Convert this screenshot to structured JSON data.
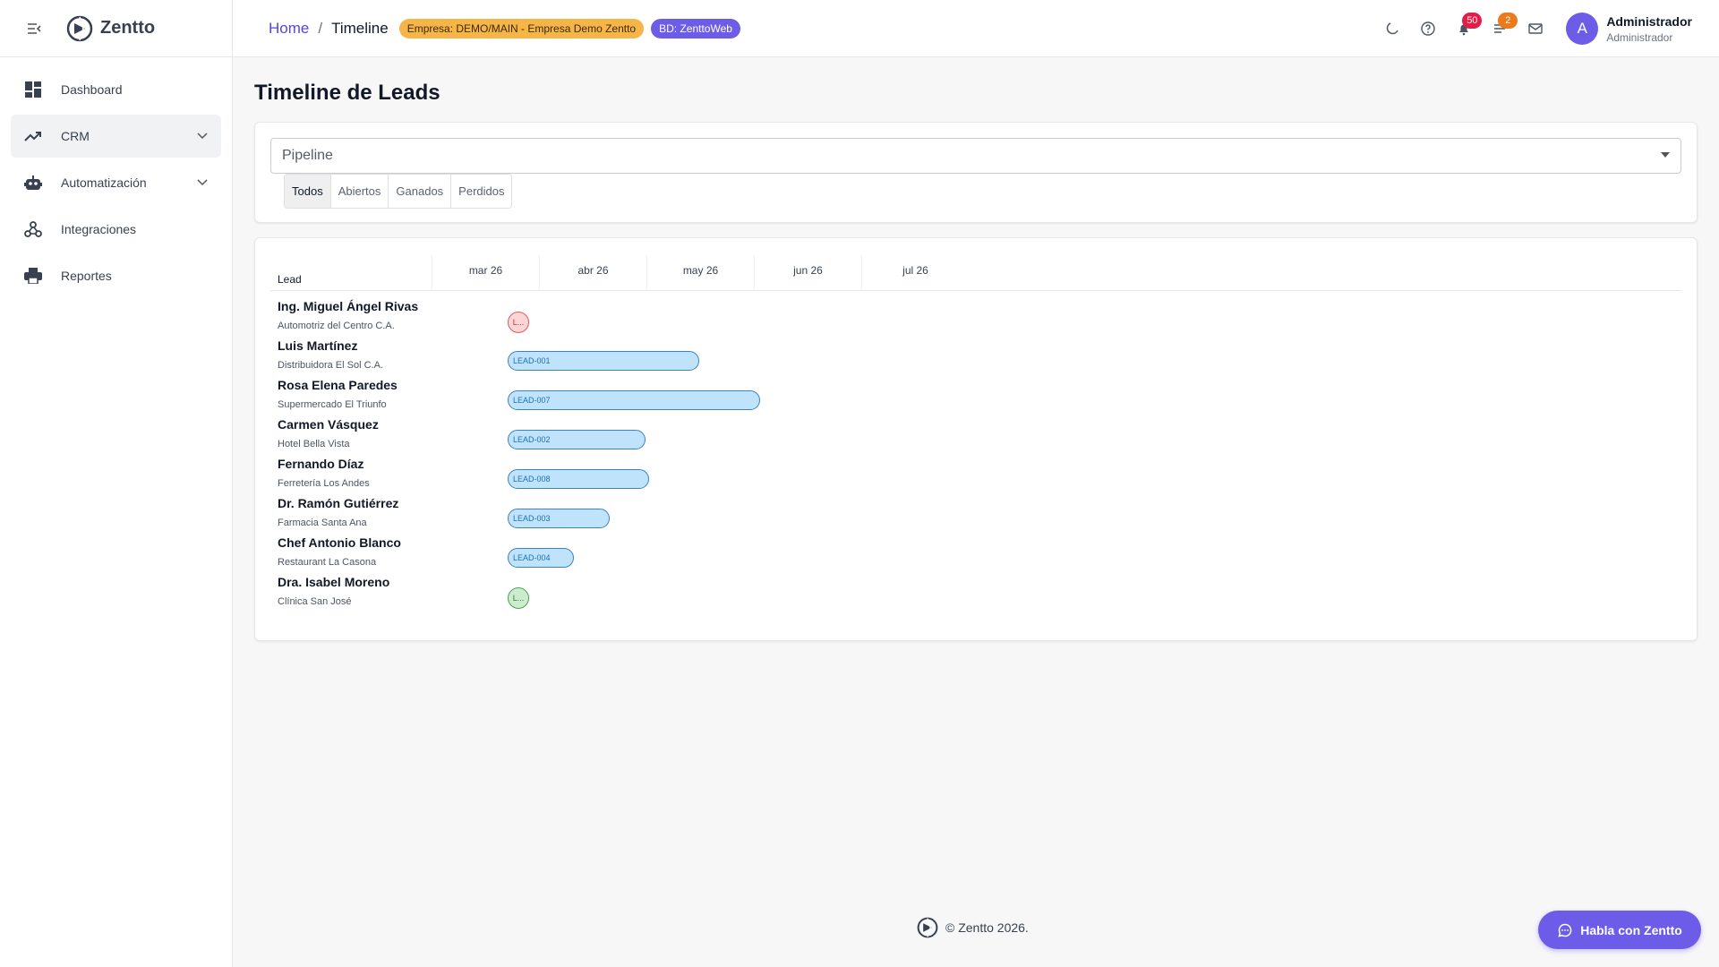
{
  "app": {
    "name": "Zentto"
  },
  "sidebar": {
    "items": [
      {
        "label": "Dashboard",
        "icon": "dashboard-icon"
      },
      {
        "label": "CRM",
        "icon": "trending-up-icon",
        "expandable": true,
        "active": true
      },
      {
        "label": "Automatización",
        "icon": "robot-icon",
        "expandable": true
      },
      {
        "label": "Integraciones",
        "icon": "webhook-icon"
      },
      {
        "label": "Reportes",
        "icon": "printer-icon"
      }
    ]
  },
  "header": {
    "breadcrumb_home": "Home",
    "breadcrumb_sep": "/",
    "breadcrumb_current": "Timeline",
    "empresa_chip": "Empresa: DEMO/MAIN - Empresa Demo Zentto",
    "bd_chip": "BD: ZenttoWeb",
    "notifications_count": "50",
    "tasks_count": "2",
    "avatar_initial": "A",
    "user_name": "Administrador",
    "user_role": "Administrador",
    "colors": {
      "accent": "#6c5ce7",
      "link": "#4f46e5",
      "empresa_chip": "#f6b547",
      "badge_red": "#e11d48",
      "badge_orange": "#ea7a1a"
    }
  },
  "main": {
    "title": "Timeline de Leads",
    "pipeline_placeholder": "Pipeline",
    "tabs": [
      {
        "label": "Todos",
        "active": true
      },
      {
        "label": "Abiertos"
      },
      {
        "label": "Ganados"
      },
      {
        "label": "Perdidos"
      }
    ]
  },
  "timeline": {
    "lead_header": "Lead",
    "months": [
      "mar 26",
      "abr 26",
      "may 26",
      "jun 26",
      "jul 26"
    ],
    "rows": [
      {
        "name": "Ing. Miguel Ángel Rivas",
        "company": "Automotriz del Centro C.A.",
        "kind": "dot",
        "status": "lost",
        "label": "L..."
      },
      {
        "name": "Luis Martínez",
        "company": "Distribuidora El Sol C.A.",
        "kind": "bar",
        "label": "LEAD-001"
      },
      {
        "name": "Rosa Elena Paredes",
        "company": "Supermercado El Triunfo",
        "kind": "bar",
        "label": "LEAD-007"
      },
      {
        "name": "Carmen Vásquez",
        "company": "Hotel Bella Vista",
        "kind": "bar",
        "label": "LEAD-002"
      },
      {
        "name": "Fernando Díaz",
        "company": "Ferretería Los Andes",
        "kind": "bar",
        "label": "LEAD-008"
      },
      {
        "name": "Dr. Ramón Gutiérrez",
        "company": "Farmacia Santa Ana",
        "kind": "bar",
        "label": "LEAD-003"
      },
      {
        "name": "Chef Antonio Blanco",
        "company": "Restaurant La Casona",
        "kind": "bar",
        "label": "LEAD-004"
      },
      {
        "name": "Dra. Isabel Moreno",
        "company": "Clínica San José",
        "kind": "dot",
        "status": "won",
        "label": "L..."
      }
    ]
  },
  "footer": {
    "text": "© Zentto 2026."
  },
  "chat": {
    "label": "Habla con Zentto"
  }
}
